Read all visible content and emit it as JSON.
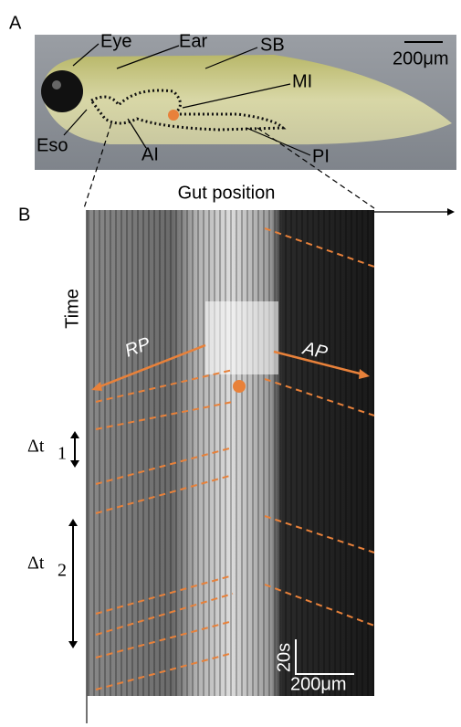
{
  "panel_a": {
    "label": "A",
    "annotations": {
      "eye": "Eye",
      "ear": "Ear",
      "sb": "SB",
      "mi": "MI",
      "eso": "Eso",
      "ai": "AI",
      "pi": "PI"
    },
    "scale_bar": "200μm"
  },
  "panel_b": {
    "label": "B",
    "x_axis": "Gut position",
    "y_axis": "Time",
    "arrows": {
      "rp": "RP",
      "ap": "AP"
    },
    "intervals": [
      {
        "symbol": "Δt",
        "subscript": "1"
      },
      {
        "symbol": "Δt",
        "subscript": "2"
      }
    ],
    "scale_time": "20s",
    "scale_space": "200μm"
  }
}
